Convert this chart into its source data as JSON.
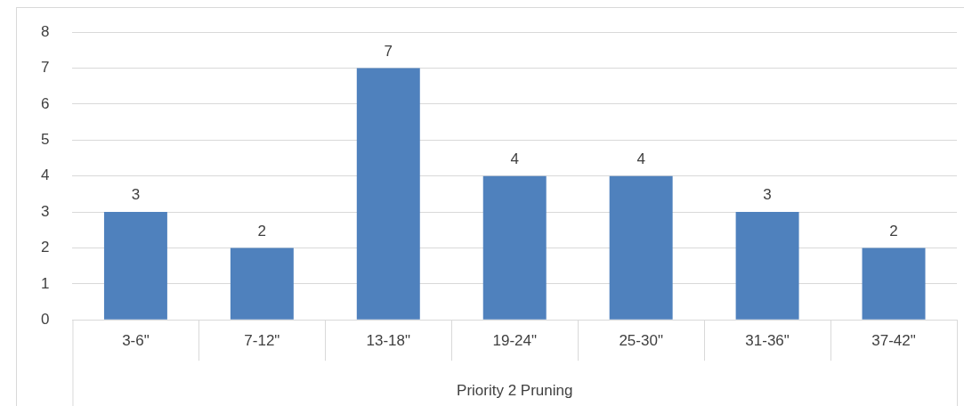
{
  "chart_data": {
    "type": "bar",
    "xlabel": "Priority 2 Pruning",
    "categories": [
      "3-6\"",
      "7-12\"",
      "13-18\"",
      "19-24\"",
      "25-30\"",
      "31-36\"",
      "37-42\""
    ],
    "values": [
      3,
      2,
      7,
      4,
      4,
      3,
      2
    ],
    "color": "#4f81bd",
    "ylim": [
      0,
      8
    ],
    "yticks": [
      0,
      1,
      2,
      3,
      4,
      5,
      6,
      7,
      8
    ],
    "grid": "y",
    "data_labels": true,
    "legend": false
  }
}
